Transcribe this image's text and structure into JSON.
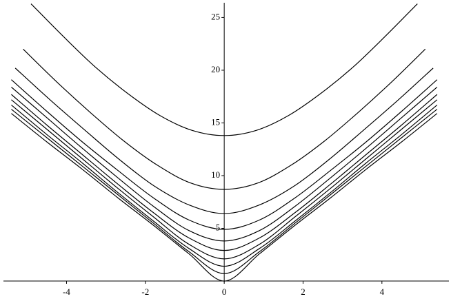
{
  "chart_data": {
    "type": "line",
    "xlim": [
      -5.6,
      5.7
    ],
    "ylim": [
      0,
      26.4
    ],
    "xticks": [
      -4,
      -2,
      0,
      2,
      4
    ],
    "yticks": [
      5,
      10,
      15,
      20,
      25
    ],
    "series": [
      {
        "color": "#000000",
        "x": [
          -4.9,
          -4.08,
          -3.27,
          -2.45,
          -1.63,
          -0.82,
          0,
          0.82,
          1.63,
          2.45,
          3.27,
          4.08,
          4.9
        ],
        "values": [
          26.3,
          23.2,
          20.3,
          17.8,
          15.7,
          14.3,
          13.8,
          14.3,
          15.7,
          17.8,
          20.3,
          23.2,
          26.3
        ]
      },
      {
        "color": "#000000",
        "x": [
          -5.1,
          -4.25,
          -3.4,
          -2.55,
          -1.7,
          -0.85,
          0,
          0.85,
          1.7,
          2.55,
          3.4,
          4.25,
          5.1
        ],
        "values": [
          22,
          18.9,
          16.0,
          13.3,
          11.0,
          9.3,
          8.7,
          9.3,
          11.0,
          13.3,
          16.0,
          18.9,
          22
        ]
      },
      {
        "color": "#000000",
        "x": [
          -5.3,
          -4.42,
          -3.53,
          -2.65,
          -1.77,
          -0.88,
          0,
          0.88,
          1.77,
          2.65,
          3.53,
          4.42,
          5.3
        ],
        "values": [
          20.2,
          17.2,
          14.3,
          11.5,
          9.0,
          7.2,
          6.4,
          7.2,
          9.0,
          11.5,
          14.3,
          17.2,
          20.2
        ]
      },
      {
        "color": "#000000",
        "x": [
          -5.4,
          -4.5,
          -3.6,
          -2.7,
          -1.8,
          -0.9,
          0,
          0.9,
          1.8,
          2.7,
          3.6,
          4.5,
          5.4
        ],
        "values": [
          19.1,
          16.1,
          13.2,
          10.5,
          7.9,
          5.8,
          4.9,
          5.8,
          7.9,
          10.5,
          13.2,
          16.1,
          19.1
        ]
      },
      {
        "color": "#000000",
        "x": [
          -5.4,
          -4.5,
          -3.6,
          -2.7,
          -1.8,
          -0.9,
          0,
          0.9,
          1.8,
          2.7,
          3.6,
          4.5,
          5.4
        ],
        "values": [
          18.4,
          15.5,
          12.6,
          9.8,
          7.1,
          4.8,
          3.8,
          4.8,
          7.1,
          9.8,
          12.6,
          15.5,
          18.4
        ]
      },
      {
        "color": "#000000",
        "x": [
          -5.4,
          -4.5,
          -3.6,
          -2.7,
          -1.8,
          -0.9,
          0,
          0.9,
          1.8,
          2.7,
          3.6,
          4.5,
          5.4
        ],
        "values": [
          17.7,
          14.8,
          12.0,
          9.2,
          6.5,
          4.1,
          2.9,
          4.1,
          6.5,
          9.2,
          12.0,
          14.8,
          17.7
        ]
      },
      {
        "color": "#000000",
        "x": [
          -5.4,
          -4.5,
          -3.6,
          -2.7,
          -1.8,
          -0.9,
          0,
          0.9,
          1.8,
          2.7,
          3.6,
          4.5,
          5.4
        ],
        "values": [
          17.2,
          14.4,
          11.6,
          8.8,
          6.1,
          3.5,
          2.1,
          3.5,
          6.1,
          8.8,
          11.6,
          14.4,
          17.2
        ]
      },
      {
        "color": "#000000",
        "x": [
          -5.4,
          -4.5,
          -3.6,
          -2.7,
          -1.8,
          -0.9,
          0,
          0.9,
          1.8,
          2.7,
          3.6,
          4.5,
          5.4
        ],
        "values": [
          16.7,
          13.9,
          11.2,
          8.4,
          5.7,
          3.1,
          1.4,
          3.1,
          5.7,
          8.4,
          11.2,
          13.9,
          16.7
        ]
      },
      {
        "color": "#000000",
        "x": [
          -5.4,
          -4.5,
          -3.6,
          -2.7,
          -1.8,
          -0.9,
          0,
          0.9,
          1.8,
          2.7,
          3.6,
          4.5,
          5.4
        ],
        "values": [
          16.3,
          13.6,
          10.9,
          8.2,
          5.5,
          2.8,
          0.7,
          2.8,
          5.5,
          8.2,
          10.9,
          13.6,
          16.3
        ]
      },
      {
        "color": "#000000",
        "x": [
          -5.4,
          -4.5,
          -3.6,
          -2.7,
          -1.8,
          -0.9,
          0,
          0.9,
          1.8,
          2.7,
          3.6,
          4.5,
          5.4
        ],
        "values": [
          15.9,
          13.2,
          10.6,
          7.9,
          5.3,
          2.6,
          0,
          2.6,
          5.3,
          7.9,
          10.6,
          13.2,
          15.9
        ]
      }
    ]
  }
}
